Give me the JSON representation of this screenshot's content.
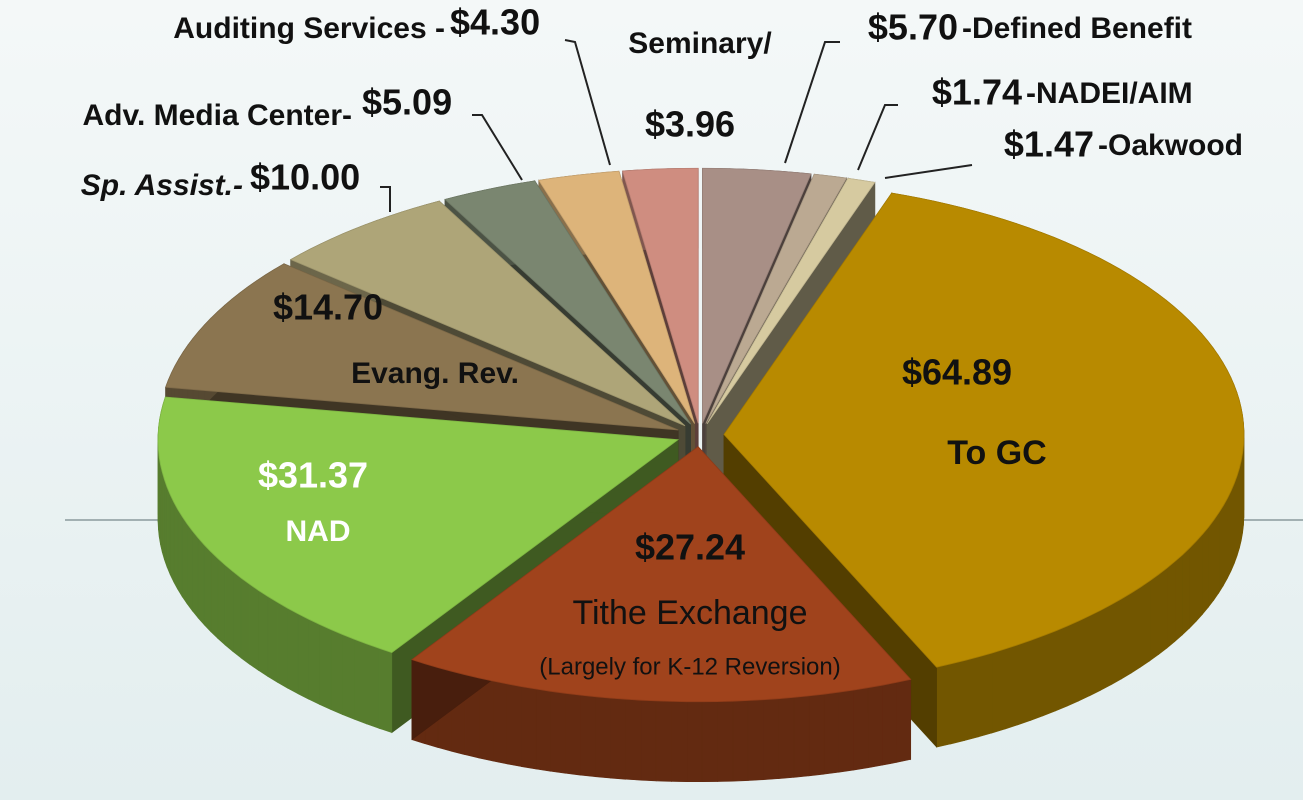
{
  "chart_data": {
    "type": "pie3d",
    "categories": [
      "-Defined Benefit",
      "-NADEI/AIM",
      "-Oakwood",
      "To GC",
      "Tithe Exchange",
      "NAD",
      "Evang. Rev.",
      "Sp. Assist.-",
      "Adv. Media Center-",
      "Auditing Services -",
      "Seminary/"
    ],
    "values": [
      5.7,
      1.74,
      1.47,
      64.89,
      27.24,
      31.37,
      14.7,
      10.0,
      5.09,
      4.3,
      3.96
    ],
    "value_labels": [
      "$5.70",
      "$1.74",
      "$1.47",
      "$64.89",
      "$27.24",
      "$31.37",
      "$14.70",
      "$10.00",
      "$5.09",
      "$4.30",
      "$3.96"
    ],
    "colors": [
      "#a88f86",
      "#bba992",
      "#d6caa0",
      "#b88a00",
      "#a0431c",
      "#8cc94a",
      "#8b7550",
      "#aea578",
      "#7a8670",
      "#ddb47a",
      "#cf8d80"
    ],
    "annotation": "(Largely for K-12 Reversion)"
  }
}
